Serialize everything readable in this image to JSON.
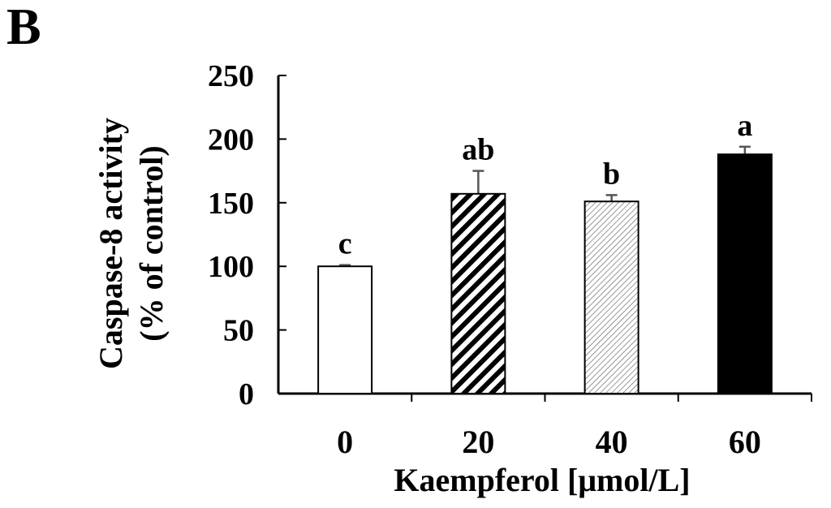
{
  "panel_label": "B",
  "chart_data": {
    "type": "bar",
    "title": "",
    "xlabel": "Kaempferol [μmol/L]",
    "ylabel_lines": [
      "Caspase-8 activity",
      "(% of control)"
    ],
    "categories": [
      "0",
      "20",
      "40",
      "60"
    ],
    "values": [
      100,
      157,
      151,
      188
    ],
    "errors": [
      1,
      18,
      5,
      6
    ],
    "significance_labels": [
      "c",
      "ab",
      "b",
      "a"
    ],
    "bar_fills": [
      "white",
      "diagonal-hatch-dense",
      "diagonal-hatch-light",
      "black"
    ],
    "ylim": [
      0,
      250
    ],
    "yticks": [
      "0",
      "50",
      "100",
      "150",
      "200",
      "250"
    ],
    "grid": false,
    "legend": "none",
    "colors": {
      "bar_edge": "#000000",
      "solid_bar": "#000000",
      "error_bar": "#555555"
    }
  }
}
